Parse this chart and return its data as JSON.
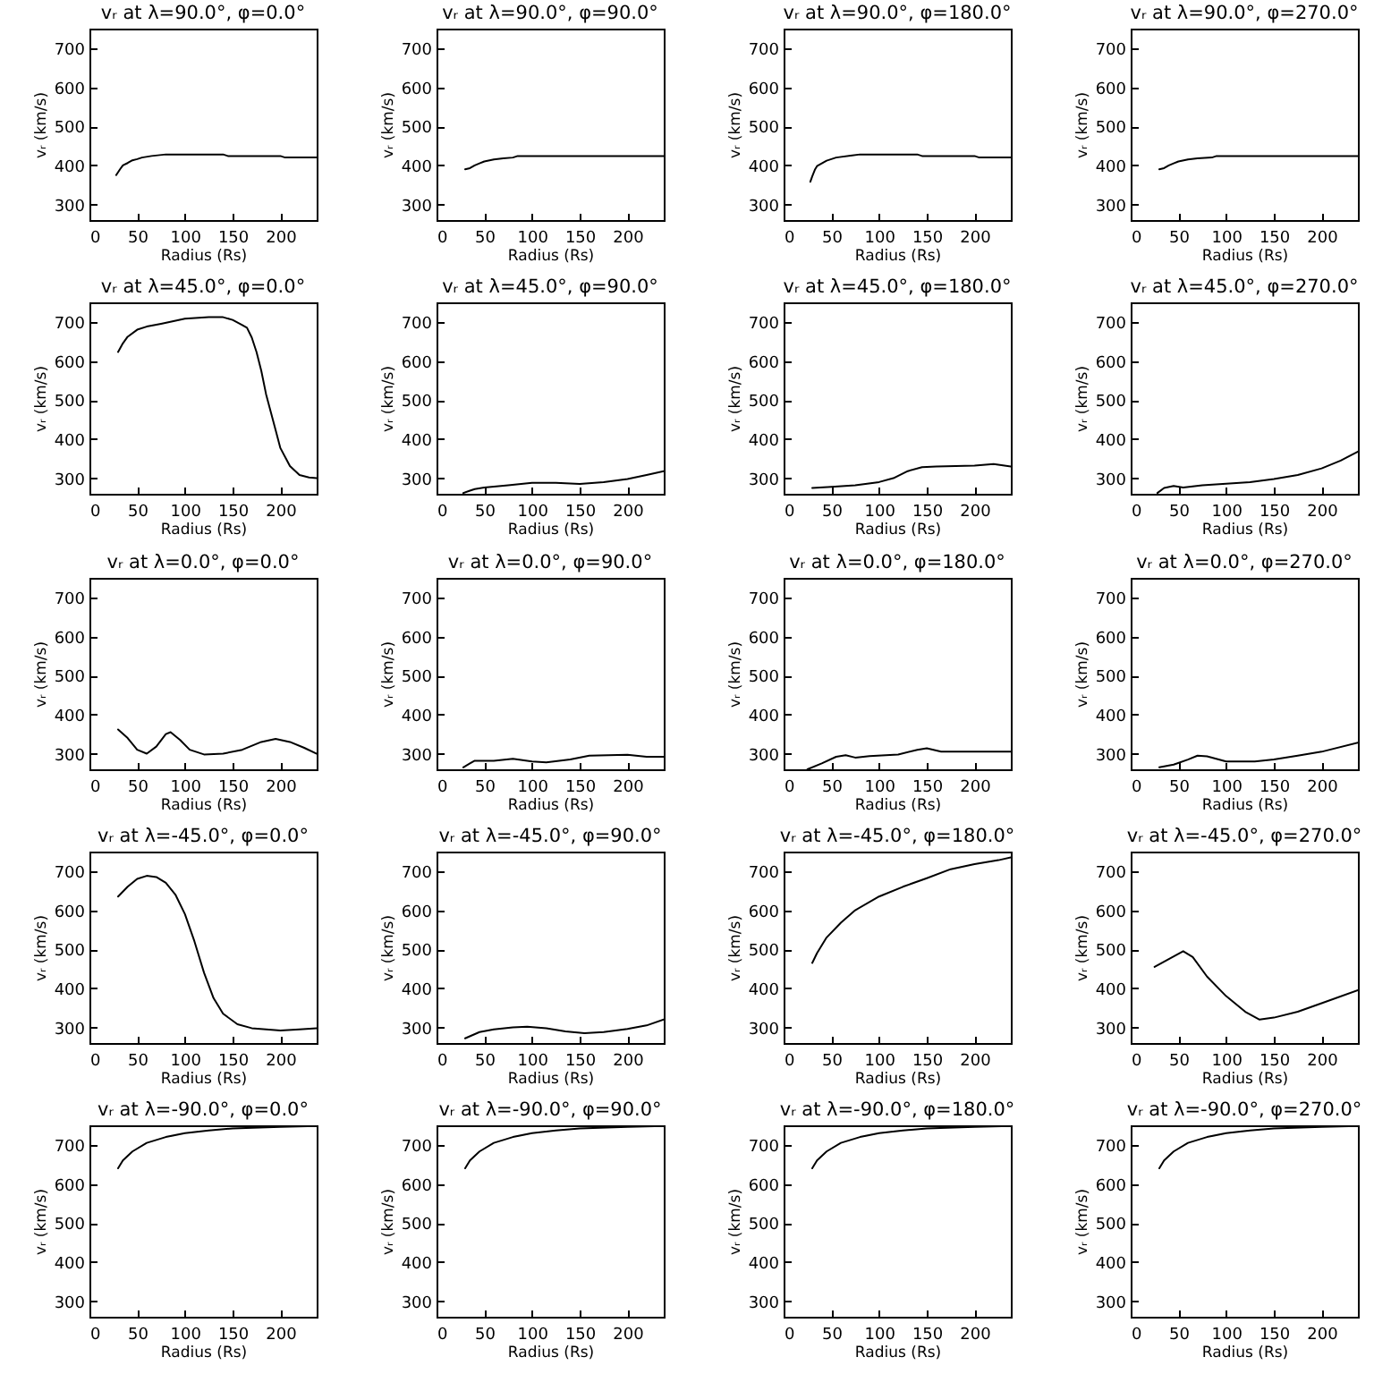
{
  "chart_data": [
    {
      "type": "line",
      "title": "vᵣ at λ=90.0°, φ=0.0°",
      "xlabel": "Radius (Rs)",
      "ylabel": "vᵣ (km/s)",
      "xlim": [
        0,
        238
      ],
      "ylim": [
        260,
        750
      ],
      "xticks": [
        0,
        50,
        100,
        150,
        200
      ],
      "yticks": [
        300,
        400,
        500,
        600,
        700
      ],
      "x": [
        28,
        32,
        35,
        40,
        45,
        50,
        55,
        65,
        80,
        100,
        140,
        145,
        200,
        205,
        238
      ],
      "series": [
        {
          "color": "#000000",
          "values": [
            375,
            390,
            400,
            406,
            413,
            416,
            420,
            424,
            428,
            428,
            428,
            424,
            424,
            420,
            420
          ]
        }
      ]
    },
    {
      "type": "line",
      "title": "vᵣ at λ=90.0°, φ=90.0°",
      "xlabel": "Radius (Rs)",
      "ylabel": "vᵣ (km/s)",
      "xlim": [
        0,
        238
      ],
      "ylim": [
        260,
        750
      ],
      "xticks": [
        0,
        50,
        100,
        150,
        200
      ],
      "yticks": [
        300,
        400,
        500,
        600,
        700
      ],
      "x": [
        30,
        35,
        40,
        45,
        50,
        60,
        70,
        80,
        85,
        238
      ],
      "series": [
        {
          "color": "#000000",
          "values": [
            390,
            393,
            400,
            405,
            410,
            415,
            418,
            420,
            424,
            424
          ]
        }
      ]
    },
    {
      "type": "line",
      "title": "vᵣ at λ=90.0°, φ=180.0°",
      "xlabel": "Radius (Rs)",
      "ylabel": "vᵣ (km/s)",
      "xlim": [
        0,
        238
      ],
      "ylim": [
        260,
        750
      ],
      "xticks": [
        0,
        50,
        100,
        150,
        200
      ],
      "yticks": [
        300,
        400,
        500,
        600,
        700
      ],
      "x": [
        28,
        30,
        33,
        35,
        40,
        45,
        55,
        70,
        80,
        140,
        145,
        200,
        205,
        238
      ],
      "series": [
        {
          "color": "#000000",
          "values": [
            358,
            372,
            390,
            398,
            405,
            412,
            420,
            425,
            428,
            428,
            424,
            424,
            420,
            420
          ]
        }
      ]
    },
    {
      "type": "line",
      "title": "vᵣ at λ=90.0°, φ=270.0°",
      "xlabel": "Radius (Rs)",
      "ylabel": "vᵣ (km/s)",
      "xlim": [
        0,
        238
      ],
      "ylim": [
        260,
        750
      ],
      "xticks": [
        0,
        50,
        100,
        150,
        200
      ],
      "yticks": [
        300,
        400,
        500,
        600,
        700
      ],
      "x": [
        30,
        35,
        40,
        45,
        50,
        60,
        70,
        85,
        90,
        238
      ],
      "series": [
        {
          "color": "#000000",
          "values": [
            390,
            393,
            400,
            405,
            410,
            415,
            418,
            420,
            424,
            424
          ]
        }
      ]
    },
    {
      "type": "line",
      "title": "vᵣ at λ=45.0°, φ=0.0°",
      "xlabel": "Radius (Rs)",
      "ylabel": "vᵣ (km/s)",
      "xlim": [
        0,
        238
      ],
      "ylim": [
        260,
        750
      ],
      "xticks": [
        0,
        50,
        100,
        150,
        200
      ],
      "yticks": [
        300,
        400,
        500,
        600,
        700
      ],
      "x": [
        30,
        35,
        40,
        50,
        60,
        75,
        100,
        125,
        140,
        150,
        160,
        165,
        170,
        175,
        180,
        185,
        190,
        195,
        200,
        210,
        220,
        230,
        238
      ],
      "series": [
        {
          "color": "#000000",
          "values": [
            623,
            645,
            662,
            680,
            688,
            695,
            708,
            712,
            712,
            705,
            692,
            685,
            660,
            623,
            575,
            515,
            469,
            423,
            377,
            331,
            308,
            302,
            300
          ]
        }
      ]
    },
    {
      "type": "line",
      "title": "vᵣ at λ=45.0°, φ=90.0°",
      "xlabel": "Radius (Rs)",
      "ylabel": "vᵣ (km/s)",
      "xlim": [
        0,
        238
      ],
      "ylim": [
        260,
        750
      ],
      "xticks": [
        0,
        50,
        100,
        150,
        200
      ],
      "yticks": [
        300,
        400,
        500,
        600,
        700
      ],
      "x": [
        28,
        35,
        40,
        50,
        75,
        100,
        125,
        150,
        175,
        200,
        220,
        238
      ],
      "series": [
        {
          "color": "#000000",
          "values": [
            262,
            268,
            272,
            276,
            282,
            288,
            288,
            285,
            290,
            298,
            308,
            318
          ]
        }
      ]
    },
    {
      "type": "line",
      "title": "vᵣ at λ=45.0°, φ=180.0°",
      "xlabel": "Radius (Rs)",
      "ylabel": "vᵣ (km/s)",
      "xlim": [
        0,
        238
      ],
      "ylim": [
        260,
        750
      ],
      "xticks": [
        0,
        50,
        100,
        150,
        200
      ],
      "yticks": [
        300,
        400,
        500,
        600,
        700
      ],
      "x": [
        30,
        50,
        75,
        100,
        115,
        130,
        145,
        160,
        200,
        220,
        238
      ],
      "series": [
        {
          "color": "#000000",
          "values": [
            275,
            278,
            282,
            290,
            300,
            318,
            328,
            330,
            332,
            336,
            330
          ]
        }
      ]
    },
    {
      "type": "line",
      "title": "vᵣ at λ=45.0°, φ=270.0°",
      "xlabel": "Radius (Rs)",
      "ylabel": "vᵣ (km/s)",
      "xlim": [
        0,
        238
      ],
      "ylim": [
        260,
        750
      ],
      "xticks": [
        0,
        50,
        100,
        150,
        200
      ],
      "yticks": [
        300,
        400,
        500,
        600,
        700
      ],
      "x": [
        28,
        35,
        45,
        55,
        75,
        100,
        125,
        150,
        175,
        200,
        220,
        238
      ],
      "series": [
        {
          "color": "#000000",
          "values": [
            262,
            275,
            280,
            276,
            282,
            286,
            290,
            298,
            308,
            325,
            345,
            368
          ]
        }
      ]
    },
    {
      "type": "line",
      "title": "vᵣ at λ=0.0°, φ=0.0°",
      "xlabel": "Radius (Rs)",
      "ylabel": "vᵣ (km/s)",
      "xlim": [
        0,
        238
      ],
      "ylim": [
        260,
        750
      ],
      "xticks": [
        0,
        50,
        100,
        150,
        200
      ],
      "yticks": [
        300,
        400,
        500,
        600,
        700
      ],
      "x": [
        30,
        40,
        50,
        60,
        70,
        80,
        85,
        95,
        105,
        120,
        140,
        160,
        180,
        195,
        210,
        225,
        238
      ],
      "series": [
        {
          "color": "#000000",
          "values": [
            362,
            340,
            310,
            300,
            318,
            350,
            355,
            335,
            310,
            298,
            300,
            310,
            330,
            338,
            330,
            315,
            300
          ]
        }
      ]
    },
    {
      "type": "line",
      "title": "vᵣ at λ=0.0°, φ=90.0°",
      "xlabel": "Radius (Rs)",
      "ylabel": "vᵣ (km/s)",
      "xlim": [
        0,
        238
      ],
      "ylim": [
        260,
        750
      ],
      "xticks": [
        0,
        50,
        100,
        150,
        200
      ],
      "yticks": [
        300,
        400,
        500,
        600,
        700
      ],
      "x": [
        28,
        35,
        40,
        60,
        80,
        100,
        115,
        140,
        160,
        200,
        220,
        238
      ],
      "series": [
        {
          "color": "#000000",
          "values": [
            265,
            275,
            282,
            282,
            287,
            280,
            278,
            285,
            295,
            297,
            292,
            292
          ]
        }
      ]
    },
    {
      "type": "line",
      "title": "vᵣ at λ=0.0°, φ=180.0°",
      "xlabel": "Radius (Rs)",
      "ylabel": "vᵣ (km/s)",
      "xlim": [
        0,
        238
      ],
      "ylim": [
        260,
        750
      ],
      "xticks": [
        0,
        50,
        100,
        150,
        200
      ],
      "yticks": [
        300,
        400,
        500,
        600,
        700
      ],
      "x": [
        25,
        40,
        55,
        65,
        75,
        90,
        120,
        140,
        150,
        165,
        200,
        238
      ],
      "series": [
        {
          "color": "#000000",
          "values": [
            260,
            275,
            292,
            296,
            290,
            294,
            298,
            310,
            314,
            305,
            305,
            305
          ]
        }
      ]
    },
    {
      "type": "line",
      "title": "vᵣ at λ=0.0°, φ=270.0°",
      "xlabel": "Radius (Rs)",
      "ylabel": "vᵣ (km/s)",
      "xlim": [
        0,
        238
      ],
      "ylim": [
        260,
        750
      ],
      "xticks": [
        0,
        50,
        100,
        150,
        200
      ],
      "yticks": [
        300,
        400,
        500,
        600,
        700
      ],
      "x": [
        30,
        45,
        60,
        70,
        80,
        100,
        130,
        150,
        175,
        200,
        238
      ],
      "series": [
        {
          "color": "#000000",
          "values": [
            265,
            272,
            285,
            295,
            293,
            280,
            280,
            285,
            295,
            305,
            328
          ]
        }
      ]
    },
    {
      "type": "line",
      "title": "vᵣ at λ=-45.0°, φ=0.0°",
      "xlabel": "Radius (Rs)",
      "ylabel": "vᵣ (km/s)",
      "xlim": [
        0,
        238
      ],
      "ylim": [
        260,
        750
      ],
      "xticks": [
        0,
        50,
        100,
        150,
        200
      ],
      "yticks": [
        300,
        400,
        500,
        600,
        700
      ],
      "x": [
        30,
        40,
        50,
        60,
        70,
        80,
        90,
        100,
        110,
        120,
        130,
        140,
        155,
        170,
        200,
        220,
        238
      ],
      "series": [
        {
          "color": "#000000",
          "values": [
            635,
            660,
            680,
            688,
            685,
            670,
            640,
            590,
            520,
            440,
            375,
            335,
            308,
            298,
            292,
            295,
            298
          ]
        }
      ]
    },
    {
      "type": "line",
      "title": "vᵣ at λ=-45.0°, φ=90.0°",
      "xlabel": "Radius (Rs)",
      "ylabel": "vᵣ (km/s)",
      "xlim": [
        0,
        238
      ],
      "ylim": [
        260,
        750
      ],
      "xticks": [
        0,
        50,
        100,
        150,
        200
      ],
      "yticks": [
        300,
        400,
        500,
        600,
        700
      ],
      "x": [
        30,
        45,
        60,
        80,
        95,
        115,
        135,
        155,
        175,
        200,
        220,
        238
      ],
      "series": [
        {
          "color": "#000000",
          "values": [
            272,
            288,
            295,
            300,
            302,
            298,
            290,
            285,
            288,
            296,
            305,
            320
          ]
        }
      ]
    },
    {
      "type": "line",
      "title": "vᵣ at λ=-45.0°, φ=180.0°",
      "xlabel": "Radius (Rs)",
      "ylabel": "vᵣ (km/s)",
      "xlim": [
        0,
        238
      ],
      "ylim": [
        260,
        750
      ],
      "xticks": [
        0,
        50,
        100,
        150,
        200
      ],
      "yticks": [
        300,
        400,
        500,
        600,
        700
      ],
      "x": [
        30,
        35,
        45,
        60,
        75,
        100,
        125,
        150,
        175,
        200,
        225,
        238
      ],
      "series": [
        {
          "color": "#000000",
          "values": [
            465,
            490,
            530,
            568,
            600,
            635,
            660,
            682,
            705,
            718,
            728,
            735
          ]
        }
      ]
    },
    {
      "type": "line",
      "title": "vᵣ at λ=-45.0°, φ=270.0°",
      "xlabel": "Radius (Rs)",
      "ylabel": "vᵣ (km/s)",
      "xlim": [
        0,
        238
      ],
      "ylim": [
        260,
        750
      ],
      "xticks": [
        0,
        50,
        100,
        150,
        200
      ],
      "yticks": [
        300,
        400,
        500,
        600,
        700
      ],
      "x": [
        25,
        40,
        55,
        65,
        80,
        100,
        120,
        135,
        150,
        175,
        200,
        238
      ],
      "series": [
        {
          "color": "#000000",
          "values": [
            455,
            475,
            495,
            480,
            430,
            380,
            340,
            320,
            325,
            340,
            362,
            395
          ]
        }
      ]
    },
    {
      "type": "line",
      "title": "vᵣ at λ=-90.0°, φ=0.0°",
      "xlabel": "Radius (Rs)",
      "ylabel": "vᵣ (km/s)",
      "xlim": [
        0,
        238
      ],
      "ylim": [
        260,
        750
      ],
      "xticks": [
        0,
        50,
        100,
        150,
        200
      ],
      "yticks": [
        300,
        400,
        500,
        600,
        700
      ],
      "x": [
        30,
        35,
        45,
        60,
        80,
        100,
        125,
        150,
        200,
        238
      ],
      "series": [
        {
          "color": "#000000",
          "values": [
            640,
            660,
            683,
            705,
            720,
            730,
            737,
            742,
            746,
            748
          ]
        }
      ]
    },
    {
      "type": "line",
      "title": "vᵣ at λ=-90.0°, φ=90.0°",
      "xlabel": "Radius (Rs)",
      "ylabel": "vᵣ (km/s)",
      "xlim": [
        0,
        238
      ],
      "ylim": [
        260,
        750
      ],
      "xticks": [
        0,
        50,
        100,
        150,
        200
      ],
      "yticks": [
        300,
        400,
        500,
        600,
        700
      ],
      "x": [
        30,
        35,
        45,
        60,
        80,
        100,
        125,
        150,
        200,
        238
      ],
      "series": [
        {
          "color": "#000000",
          "values": [
            640,
            660,
            683,
            705,
            720,
            730,
            737,
            742,
            746,
            748
          ]
        }
      ]
    },
    {
      "type": "line",
      "title": "vᵣ at λ=-90.0°, φ=180.0°",
      "xlabel": "Radius (Rs)",
      "ylabel": "vᵣ (km/s)",
      "xlim": [
        0,
        238
      ],
      "ylim": [
        260,
        750
      ],
      "xticks": [
        0,
        50,
        100,
        150,
        200
      ],
      "yticks": [
        300,
        400,
        500,
        600,
        700
      ],
      "x": [
        30,
        35,
        45,
        60,
        80,
        100,
        125,
        150,
        200,
        238
      ],
      "series": [
        {
          "color": "#000000",
          "values": [
            640,
            660,
            683,
            705,
            720,
            730,
            737,
            742,
            746,
            748
          ]
        }
      ]
    },
    {
      "type": "line",
      "title": "vᵣ at λ=-90.0°, φ=270.0°",
      "xlabel": "Radius (Rs)",
      "ylabel": "vᵣ (km/s)",
      "xlim": [
        0,
        238
      ],
      "ylim": [
        260,
        750
      ],
      "xticks": [
        0,
        50,
        100,
        150,
        200
      ],
      "yticks": [
        300,
        400,
        500,
        600,
        700
      ],
      "x": [
        30,
        35,
        45,
        60,
        80,
        100,
        125,
        150,
        200,
        238
      ],
      "series": [
        {
          "color": "#000000",
          "values": [
            640,
            660,
            683,
            705,
            720,
            730,
            737,
            742,
            746,
            748
          ]
        }
      ]
    }
  ]
}
